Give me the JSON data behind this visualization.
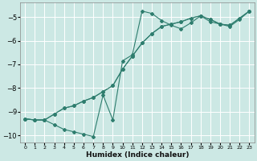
{
  "xlabel": "Humidex (Indice chaleur)",
  "bg_color": "#cce8e4",
  "grid_color": "#ffffff",
  "line_color": "#2e7d6e",
  "xlim": [
    -0.5,
    23.5
  ],
  "ylim": [
    -10.3,
    -4.4
  ],
  "xticks": [
    0,
    1,
    2,
    3,
    4,
    5,
    6,
    7,
    8,
    9,
    10,
    11,
    12,
    13,
    14,
    15,
    16,
    17,
    18,
    19,
    20,
    21,
    22,
    23
  ],
  "yticks": [
    -10,
    -9,
    -8,
    -7,
    -6,
    -5
  ],
  "line1_x": [
    0,
    1,
    2,
    3,
    4,
    5,
    6,
    7,
    8,
    9,
    10,
    11,
    12,
    13,
    14,
    15,
    16,
    17,
    18,
    19,
    20,
    21,
    22,
    23
  ],
  "line1_y": [
    -9.3,
    -9.35,
    -9.35,
    -9.55,
    -9.75,
    -9.85,
    -9.95,
    -10.05,
    -8.3,
    -9.35,
    -6.85,
    -6.6,
    -4.75,
    -4.85,
    -5.15,
    -5.35,
    -5.5,
    -5.25,
    -4.95,
    -5.2,
    -5.3,
    -5.4,
    -5.1,
    -4.75
  ],
  "line2_x": [
    0,
    1,
    2,
    3,
    4,
    5,
    6,
    7,
    8,
    9,
    10,
    11,
    12,
    13,
    14,
    15,
    16,
    17,
    18,
    19,
    20,
    21,
    22,
    23
  ],
  "line2_y": [
    -9.3,
    -9.35,
    -9.35,
    -9.1,
    -8.85,
    -8.75,
    -8.55,
    -8.4,
    -8.15,
    -7.9,
    -7.2,
    -6.65,
    -6.1,
    -5.7,
    -5.4,
    -5.3,
    -5.2,
    -5.05,
    -4.95,
    -5.1,
    -5.3,
    -5.35,
    -5.05,
    -4.75
  ],
  "line3_x": [
    0,
    1,
    2,
    3,
    4,
    5,
    6,
    7,
    8,
    9,
    10,
    11,
    12,
    13,
    14,
    15,
    16,
    17,
    18,
    19,
    20,
    21,
    22,
    23
  ],
  "line3_y": [
    -9.3,
    -9.35,
    -9.35,
    -9.1,
    -8.85,
    -8.75,
    -8.55,
    -8.4,
    -8.15,
    -7.9,
    -7.2,
    -6.65,
    -6.1,
    -5.7,
    -5.4,
    -5.3,
    -5.2,
    -5.05,
    -4.95,
    -5.1,
    -5.3,
    -5.35,
    -5.05,
    -4.75
  ]
}
